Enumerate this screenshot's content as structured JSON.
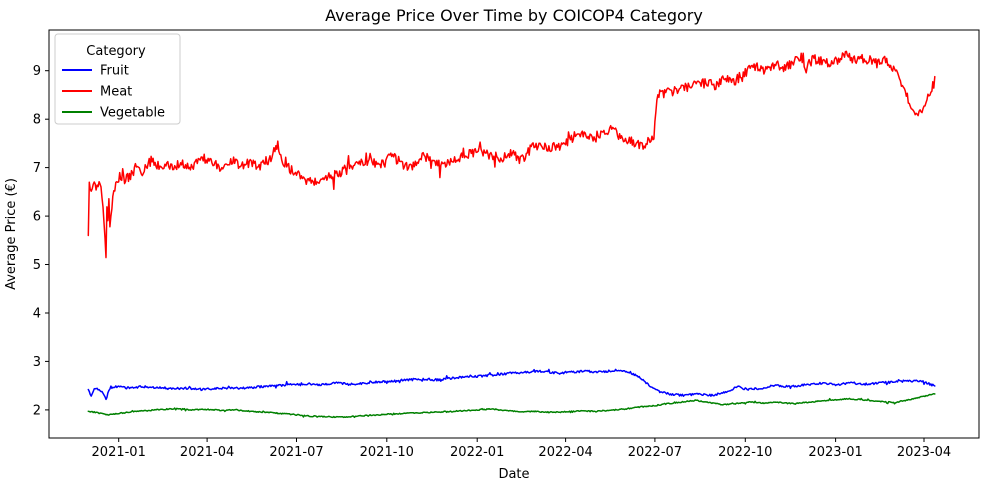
{
  "chart_data": {
    "type": "line",
    "title": "Average Price Over Time by COICOP4 Category",
    "xlabel": "Date",
    "ylabel": "Average Price (€)",
    "grid": false,
    "background": "#ffffff",
    "spine_color": "#000000",
    "legend": {
      "title": "Category",
      "position": "upper left",
      "border_color": "#cccccc"
    },
    "x_ticks": [
      "2021-01",
      "2021-04",
      "2021-07",
      "2021-10",
      "2022-01",
      "2022-04",
      "2022-07",
      "2022-10",
      "2023-01",
      "2023-04"
    ],
    "y_ticks": [
      2,
      3,
      4,
      5,
      6,
      7,
      8,
      9
    ],
    "xlim": [
      "2020-10-22",
      "2023-05-27"
    ],
    "ylim": [
      1.42,
      9.84
    ],
    "date_range": [
      "2020-12-01",
      "2023-04-12"
    ],
    "line_width": 1.5,
    "series": [
      {
        "name": "Fruit",
        "color": "#0000ff",
        "noise": 0.022,
        "points": [
          [
            "2020-12-01",
            2.42
          ],
          [
            "2020-12-04",
            2.3
          ],
          [
            "2020-12-08",
            2.45
          ],
          [
            "2020-12-12",
            2.4
          ],
          [
            "2020-12-16",
            2.35
          ],
          [
            "2020-12-19",
            2.22
          ],
          [
            "2020-12-23",
            2.45
          ],
          [
            "2020-12-29",
            2.48
          ],
          [
            "2021-01-10",
            2.45
          ],
          [
            "2021-01-25",
            2.48
          ],
          [
            "2021-02-10",
            2.46
          ],
          [
            "2021-02-25",
            2.44
          ],
          [
            "2021-03-12",
            2.45
          ],
          [
            "2021-03-27",
            2.42
          ],
          [
            "2021-04-11",
            2.44
          ],
          [
            "2021-04-26",
            2.46
          ],
          [
            "2021-05-11",
            2.45
          ],
          [
            "2021-05-26",
            2.48
          ],
          [
            "2021-06-10",
            2.5
          ],
          [
            "2021-06-25",
            2.52
          ],
          [
            "2021-07-10",
            2.54
          ],
          [
            "2021-07-25",
            2.52
          ],
          [
            "2021-08-09",
            2.56
          ],
          [
            "2021-08-24",
            2.53
          ],
          [
            "2021-09-08",
            2.55
          ],
          [
            "2021-09-23",
            2.58
          ],
          [
            "2021-10-08",
            2.6
          ],
          [
            "2021-10-23",
            2.62
          ],
          [
            "2021-11-07",
            2.64
          ],
          [
            "2021-11-22",
            2.62
          ],
          [
            "2021-12-07",
            2.66
          ],
          [
            "2021-12-22",
            2.68
          ],
          [
            "2022-01-06",
            2.7
          ],
          [
            "2022-01-21",
            2.73
          ],
          [
            "2022-02-05",
            2.76
          ],
          [
            "2022-02-20",
            2.78
          ],
          [
            "2022-03-07",
            2.8
          ],
          [
            "2022-03-22",
            2.76
          ],
          [
            "2022-04-06",
            2.78
          ],
          [
            "2022-04-21",
            2.8
          ],
          [
            "2022-05-06",
            2.78
          ],
          [
            "2022-05-21",
            2.82
          ],
          [
            "2022-06-05",
            2.78
          ],
          [
            "2022-06-15",
            2.68
          ],
          [
            "2022-06-25",
            2.5
          ],
          [
            "2022-07-05",
            2.38
          ],
          [
            "2022-07-15",
            2.33
          ],
          [
            "2022-07-30",
            2.3
          ],
          [
            "2022-08-14",
            2.32
          ],
          [
            "2022-08-29",
            2.3
          ],
          [
            "2022-09-13",
            2.38
          ],
          [
            "2022-09-23",
            2.48
          ],
          [
            "2022-10-03",
            2.42
          ],
          [
            "2022-10-18",
            2.45
          ],
          [
            "2022-11-02",
            2.5
          ],
          [
            "2022-11-17",
            2.48
          ],
          [
            "2022-12-02",
            2.52
          ],
          [
            "2022-12-17",
            2.55
          ],
          [
            "2023-01-01",
            2.52
          ],
          [
            "2023-01-16",
            2.56
          ],
          [
            "2023-01-31",
            2.53
          ],
          [
            "2023-02-15",
            2.56
          ],
          [
            "2023-03-02",
            2.58
          ],
          [
            "2023-03-17",
            2.6
          ],
          [
            "2023-04-01",
            2.58
          ],
          [
            "2023-04-08",
            2.52
          ],
          [
            "2023-04-12",
            2.5
          ]
        ]
      },
      {
        "name": "Meat",
        "color": "#ff0000",
        "noise": 0.1,
        "points": [
          [
            "2020-12-01",
            5.6
          ],
          [
            "2020-12-02",
            6.7
          ],
          [
            "2020-12-04",
            6.55
          ],
          [
            "2020-12-07",
            6.7
          ],
          [
            "2020-12-09",
            6.45
          ],
          [
            "2020-12-11",
            6.65
          ],
          [
            "2020-12-14",
            6.6
          ],
          [
            "2020-12-16",
            6.25
          ],
          [
            "2020-12-17",
            5.9
          ],
          [
            "2020-12-19",
            5.05
          ],
          [
            "2020-12-20",
            6.1
          ],
          [
            "2020-12-21",
            5.95
          ],
          [
            "2020-12-22",
            6.3
          ],
          [
            "2020-12-23",
            5.8
          ],
          [
            "2020-12-26",
            6.45
          ],
          [
            "2020-12-29",
            6.6
          ],
          [
            "2021-01-03",
            6.85
          ],
          [
            "2021-01-08",
            6.75
          ],
          [
            "2021-01-14",
            6.85
          ],
          [
            "2021-01-20",
            7.1
          ],
          [
            "2021-01-26",
            6.9
          ],
          [
            "2021-02-03",
            7.15
          ],
          [
            "2021-02-10",
            6.95
          ],
          [
            "2021-02-17",
            7.05
          ],
          [
            "2021-02-24",
            7.0
          ],
          [
            "2021-03-05",
            7.1
          ],
          [
            "2021-03-15",
            6.95
          ],
          [
            "2021-03-25",
            7.15
          ],
          [
            "2021-04-05",
            7.1
          ],
          [
            "2021-04-15",
            7.0
          ],
          [
            "2021-04-25",
            7.15
          ],
          [
            "2021-05-05",
            7.05
          ],
          [
            "2021-05-15",
            7.1
          ],
          [
            "2021-05-25",
            7.05
          ],
          [
            "2021-06-05",
            7.2
          ],
          [
            "2021-06-12",
            7.5
          ],
          [
            "2021-06-18",
            7.1
          ],
          [
            "2021-06-25",
            6.95
          ],
          [
            "2021-07-05",
            6.8
          ],
          [
            "2021-07-15",
            6.7
          ],
          [
            "2021-07-25",
            6.75
          ],
          [
            "2021-08-05",
            6.85
          ],
          [
            "2021-08-15",
            6.9
          ],
          [
            "2021-08-25",
            7.0
          ],
          [
            "2021-09-05",
            7.1
          ],
          [
            "2021-09-15",
            7.15
          ],
          [
            "2021-09-25",
            7.05
          ],
          [
            "2021-10-05",
            7.25
          ],
          [
            "2021-10-15",
            7.1
          ],
          [
            "2021-10-25",
            7.0
          ],
          [
            "2021-11-05",
            7.25
          ],
          [
            "2021-11-15",
            7.2
          ],
          [
            "2021-11-25",
            7.05
          ],
          [
            "2021-12-05",
            7.1
          ],
          [
            "2021-12-15",
            7.2
          ],
          [
            "2021-12-25",
            7.3
          ],
          [
            "2022-01-05",
            7.35
          ],
          [
            "2022-01-15",
            7.25
          ],
          [
            "2022-01-25",
            7.2
          ],
          [
            "2022-02-05",
            7.3
          ],
          [
            "2022-02-15",
            7.15
          ],
          [
            "2022-02-25",
            7.4
          ],
          [
            "2022-03-07",
            7.5
          ],
          [
            "2022-03-17",
            7.4
          ],
          [
            "2022-03-27",
            7.45
          ],
          [
            "2022-04-07",
            7.6
          ],
          [
            "2022-04-17",
            7.75
          ],
          [
            "2022-04-27",
            7.6
          ],
          [
            "2022-05-07",
            7.7
          ],
          [
            "2022-05-17",
            7.8
          ],
          [
            "2022-05-27",
            7.65
          ],
          [
            "2022-06-06",
            7.55
          ],
          [
            "2022-06-16",
            7.45
          ],
          [
            "2022-06-26",
            7.55
          ],
          [
            "2022-06-30",
            7.6
          ],
          [
            "2022-07-02",
            8.2
          ],
          [
            "2022-07-04",
            8.5
          ],
          [
            "2022-07-12",
            8.55
          ],
          [
            "2022-07-22",
            8.6
          ],
          [
            "2022-08-01",
            8.65
          ],
          [
            "2022-08-11",
            8.7
          ],
          [
            "2022-08-21",
            8.75
          ],
          [
            "2022-09-01",
            8.7
          ],
          [
            "2022-09-11",
            8.85
          ],
          [
            "2022-09-21",
            8.8
          ],
          [
            "2022-10-01",
            8.95
          ],
          [
            "2022-10-11",
            9.1
          ],
          [
            "2022-10-21",
            9.0
          ],
          [
            "2022-11-01",
            9.15
          ],
          [
            "2022-11-11",
            9.05
          ],
          [
            "2022-11-21",
            9.2
          ],
          [
            "2022-12-01",
            9.1
          ],
          [
            "2022-12-11",
            9.25
          ],
          [
            "2022-12-21",
            9.15
          ],
          [
            "2023-01-01",
            9.2
          ],
          [
            "2023-01-11",
            9.35
          ],
          [
            "2023-01-21",
            9.2
          ],
          [
            "2023-02-01",
            9.25
          ],
          [
            "2023-02-11",
            9.15
          ],
          [
            "2023-02-21",
            9.2
          ],
          [
            "2023-03-03",
            8.95
          ],
          [
            "2023-03-10",
            8.7
          ],
          [
            "2023-03-17",
            8.35
          ],
          [
            "2023-03-24",
            8.15
          ],
          [
            "2023-03-31",
            8.2
          ],
          [
            "2023-04-06",
            8.5
          ],
          [
            "2023-04-12",
            8.78
          ]
        ]
      },
      {
        "name": "Vegetable",
        "color": "#008000",
        "noise": 0.011,
        "points": [
          [
            "2020-12-01",
            1.97
          ],
          [
            "2020-12-08",
            1.95
          ],
          [
            "2020-12-15",
            1.92
          ],
          [
            "2020-12-22",
            1.9
          ],
          [
            "2021-01-01",
            1.93
          ],
          [
            "2021-01-15",
            1.96
          ],
          [
            "2021-02-01",
            1.99
          ],
          [
            "2021-02-15",
            2.01
          ],
          [
            "2021-03-01",
            2.03
          ],
          [
            "2021-03-15",
            2.0
          ],
          [
            "2021-04-01",
            2.01
          ],
          [
            "2021-04-15",
            1.99
          ],
          [
            "2021-05-01",
            2.0
          ],
          [
            "2021-05-15",
            1.97
          ],
          [
            "2021-06-01",
            1.95
          ],
          [
            "2021-06-15",
            1.93
          ],
          [
            "2021-07-01",
            1.9
          ],
          [
            "2021-07-15",
            1.87
          ],
          [
            "2021-08-01",
            1.86
          ],
          [
            "2021-08-15",
            1.85
          ],
          [
            "2021-09-01",
            1.87
          ],
          [
            "2021-09-15",
            1.89
          ],
          [
            "2021-10-01",
            1.91
          ],
          [
            "2021-10-15",
            1.92
          ],
          [
            "2021-11-01",
            1.94
          ],
          [
            "2021-11-15",
            1.95
          ],
          [
            "2021-12-01",
            1.96
          ],
          [
            "2021-12-15",
            1.98
          ],
          [
            "2022-01-01",
            2.0
          ],
          [
            "2022-01-15",
            2.02
          ],
          [
            "2022-02-01",
            1.98
          ],
          [
            "2022-02-15",
            1.96
          ],
          [
            "2022-03-01",
            1.97
          ],
          [
            "2022-03-15",
            1.95
          ],
          [
            "2022-04-01",
            1.96
          ],
          [
            "2022-04-15",
            1.98
          ],
          [
            "2022-05-01",
            1.97
          ],
          [
            "2022-05-15",
            1.99
          ],
          [
            "2022-06-01",
            2.02
          ],
          [
            "2022-06-15",
            2.06
          ],
          [
            "2022-07-01",
            2.09
          ],
          [
            "2022-07-15",
            2.13
          ],
          [
            "2022-08-01",
            2.17
          ],
          [
            "2022-08-12",
            2.2
          ],
          [
            "2022-08-25",
            2.15
          ],
          [
            "2022-09-08",
            2.11
          ],
          [
            "2022-09-22",
            2.13
          ],
          [
            "2022-10-06",
            2.16
          ],
          [
            "2022-10-20",
            2.14
          ],
          [
            "2022-11-03",
            2.16
          ],
          [
            "2022-11-17",
            2.13
          ],
          [
            "2022-12-01",
            2.15
          ],
          [
            "2022-12-15",
            2.18
          ],
          [
            "2023-01-01",
            2.21
          ],
          [
            "2023-01-15",
            2.23
          ],
          [
            "2023-02-01",
            2.2
          ],
          [
            "2023-02-15",
            2.18
          ],
          [
            "2023-03-01",
            2.15
          ],
          [
            "2023-03-15",
            2.2
          ],
          [
            "2023-04-01",
            2.28
          ],
          [
            "2023-04-12",
            2.33
          ]
        ]
      }
    ]
  }
}
